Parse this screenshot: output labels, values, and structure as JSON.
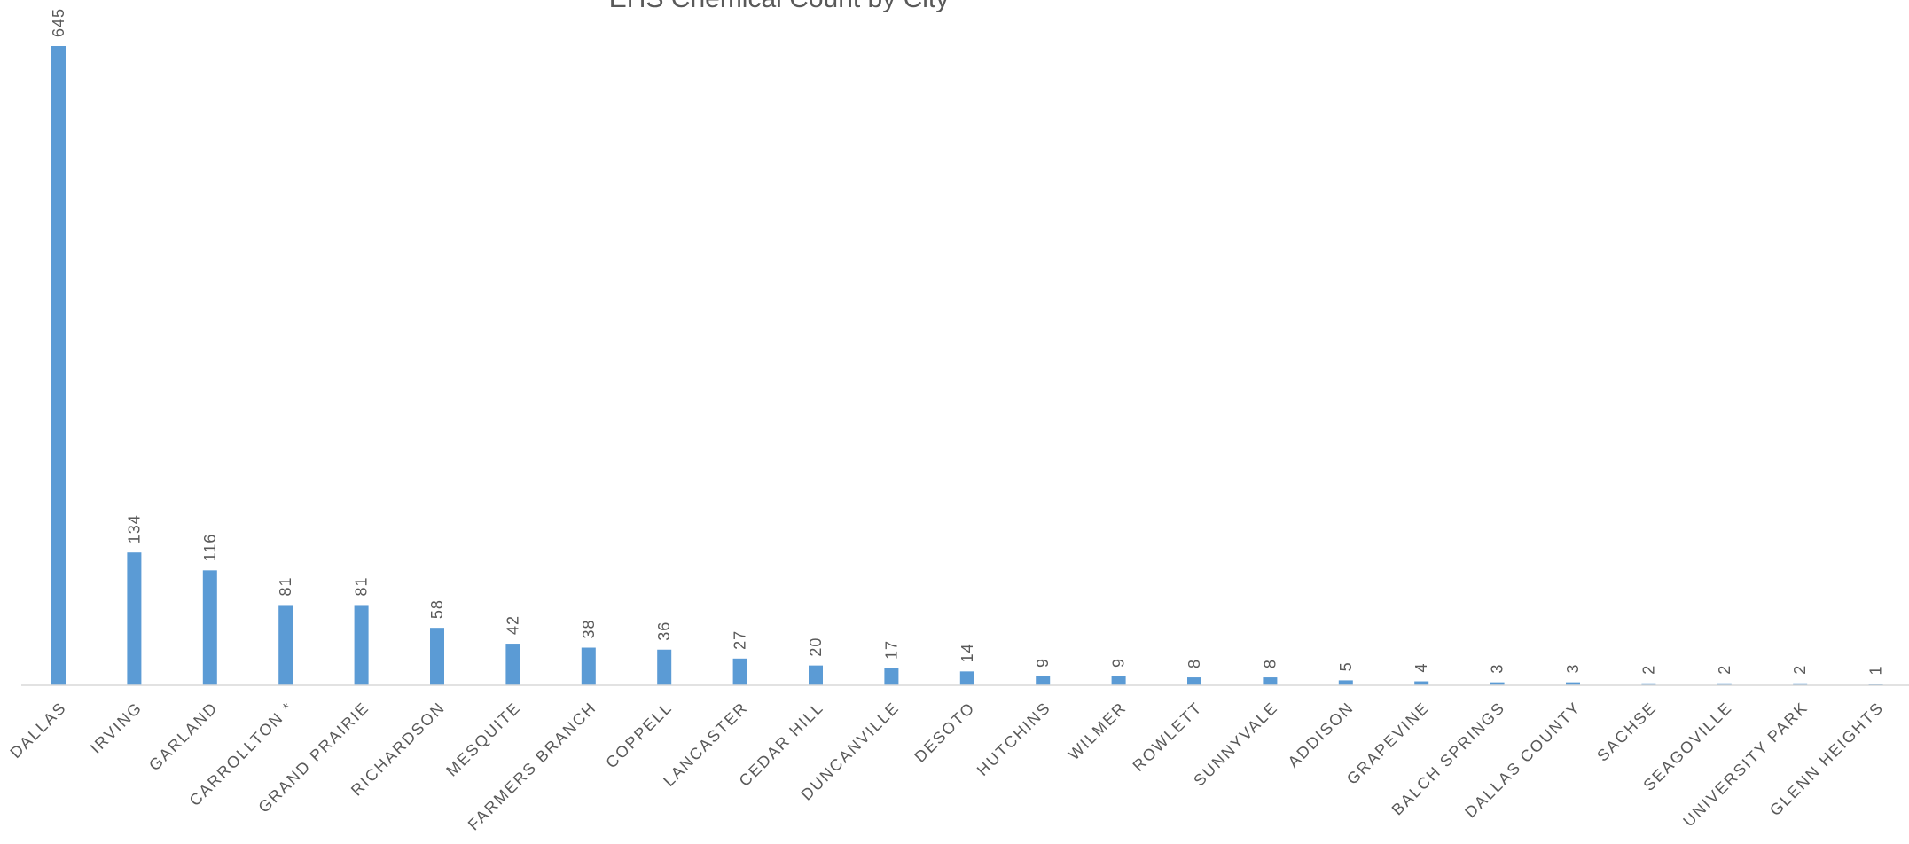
{
  "chart_data": {
    "type": "bar",
    "title": "EHS Chemical Count by City",
    "xlabel": "",
    "ylabel": "",
    "ylim": [
      0,
      645
    ],
    "grid": false,
    "legend": "none",
    "bar_color": "#5B9BD5",
    "baseline_color": "#D9D9D9",
    "categories": [
      "DALLAS",
      "IRVING",
      "GARLAND",
      "CARROLLTON *",
      "GRAND PRAIRIE",
      "RICHARDSON",
      "MESQUITE",
      "FARMERS BRANCH",
      "COPPELL",
      "LANCASTER",
      "CEDAR HILL",
      "DUNCANVILLE",
      "DESOTO",
      "HUTCHINS",
      "WILMER",
      "ROWLETT",
      "SUNNYVALE",
      "ADDISON",
      "GRAPEVINE",
      "BALCH SPRINGS",
      "DALLAS COUNTY",
      "SACHSE",
      "SEAGOVILLE",
      "UNIVERSITY PARK",
      "GLENN HEIGHTS"
    ],
    "values": [
      645,
      134,
      116,
      81,
      81,
      58,
      42,
      38,
      36,
      27,
      20,
      17,
      14,
      9,
      9,
      8,
      8,
      5,
      4,
      3,
      3,
      2,
      2,
      2,
      1
    ]
  }
}
